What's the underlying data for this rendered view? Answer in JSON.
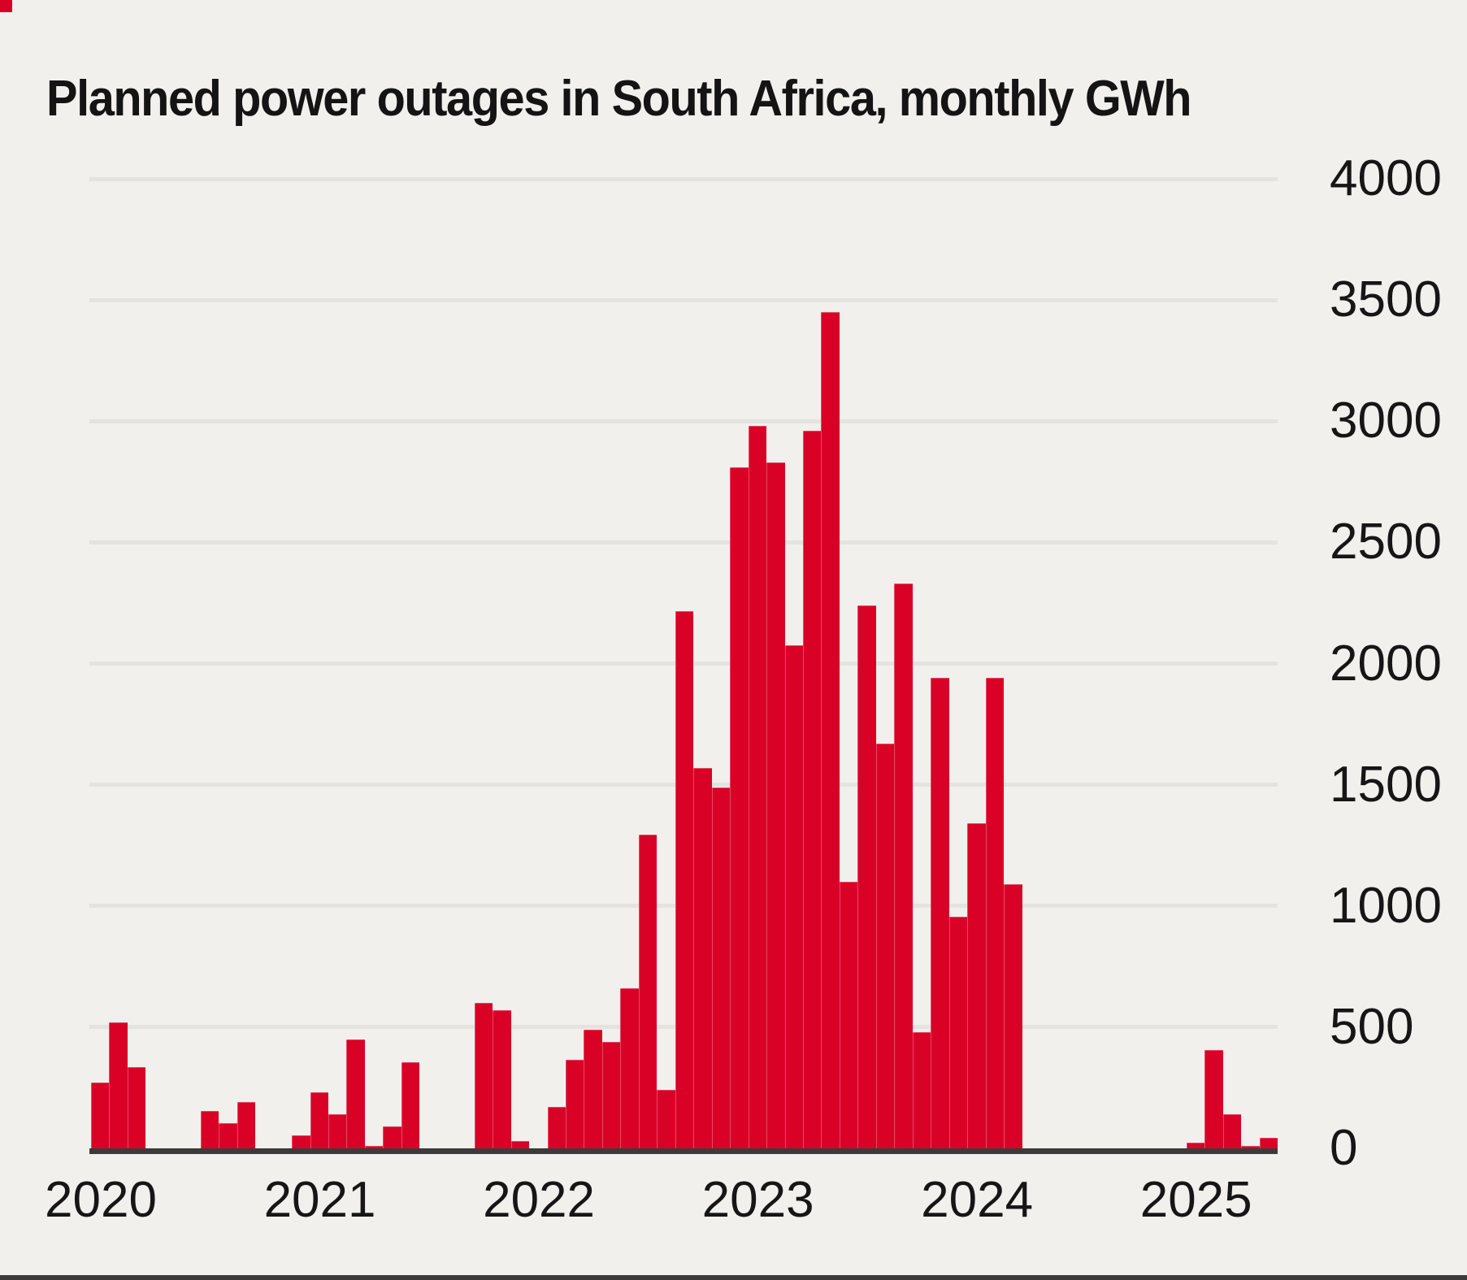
{
  "title": "Planned power outages in South Africa, monthly GWh",
  "colors": {
    "bar": "#da0127",
    "background": "#f1f0ed",
    "gridline": "#e5e3df",
    "axis_line": "#3b3b3b",
    "text": "#161616"
  },
  "chart_data": {
    "type": "bar",
    "title": "Planned power outages in South Africa, monthly GWh",
    "xlabel": "",
    "ylabel": "GWh",
    "ylim": [
      0,
      4000
    ],
    "y_ticks": [
      0,
      500,
      1000,
      1500,
      2000,
      2500,
      3000,
      3500,
      4000
    ],
    "y_tick_side": "right",
    "grid": "horizontal",
    "legend": "none",
    "x_tick_years": [
      "2020",
      "2021",
      "2022",
      "2023",
      "2024",
      "2025"
    ],
    "x": [
      "2020-01",
      "2020-02",
      "2020-03",
      "2020-04",
      "2020-05",
      "2020-06",
      "2020-07",
      "2020-08",
      "2020-09",
      "2020-10",
      "2020-11",
      "2020-12",
      "2021-01",
      "2021-02",
      "2021-03",
      "2021-04",
      "2021-05",
      "2021-06",
      "2021-07",
      "2021-08",
      "2021-09",
      "2021-10",
      "2021-11",
      "2021-12",
      "2022-01",
      "2022-02",
      "2022-03",
      "2022-04",
      "2022-05",
      "2022-06",
      "2022-07",
      "2022-08",
      "2022-09",
      "2022-10",
      "2022-11",
      "2022-12",
      "2023-01",
      "2023-02",
      "2023-03",
      "2023-04",
      "2023-05",
      "2023-06",
      "2023-07",
      "2023-08",
      "2023-09",
      "2023-10",
      "2023-11",
      "2023-12",
      "2024-01",
      "2024-02",
      "2024-03",
      "2024-04",
      "2024-05",
      "2024-06",
      "2024-07",
      "2024-08",
      "2024-09",
      "2024-10",
      "2024-11",
      "2024-12",
      "2025-01",
      "2025-02",
      "2025-03",
      "2025-04",
      "2025-05"
    ],
    "values": [
      270,
      520,
      335,
      0,
      0,
      0,
      155,
      105,
      190,
      0,
      0,
      55,
      230,
      140,
      450,
      10,
      90,
      355,
      0,
      0,
      0,
      600,
      570,
      30,
      0,
      170,
      365,
      490,
      440,
      660,
      1295,
      240,
      2215,
      1570,
      1490,
      2810,
      2980,
      2830,
      2075,
      2960,
      3450,
      1100,
      2240,
      1670,
      2330,
      480,
      1940,
      955,
      1340,
      1940,
      1090,
      0,
      0,
      0,
      0,
      0,
      0,
      0,
      0,
      0,
      25,
      405,
      140,
      10,
      45
    ]
  }
}
